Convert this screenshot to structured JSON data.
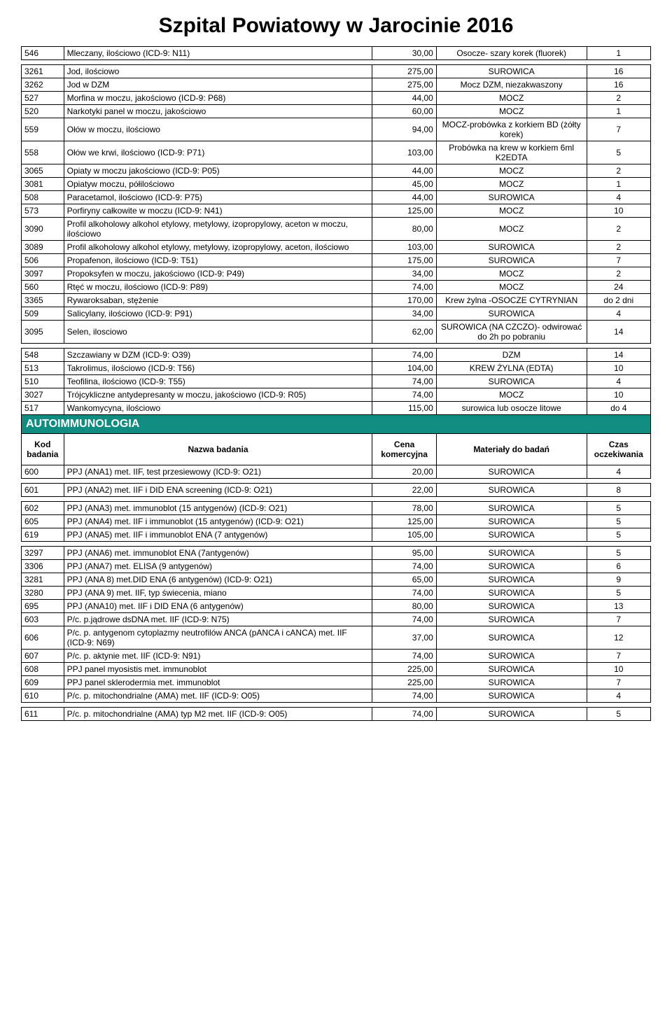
{
  "title": "Szpital Powiatowy w Jarocinie 2016",
  "section": "AUTOIMMUNOLOGIA",
  "headers": {
    "kod": "Kod badania",
    "nazwa": "Nazwa badania",
    "cena": "Cena komercyjna",
    "mat": "Materiały do badań",
    "czas": "Czas oczekiwania"
  },
  "colors": {
    "section_bg": "#118c80",
    "section_fg": "#ffffff",
    "border": "#000000",
    "text": "#000000",
    "bg": "#ffffff"
  },
  "rows1": [
    {
      "k": "546",
      "n": "Mleczany, ilościowo (ICD-9: N11)",
      "c": "30,00",
      "m": "Osocze- szary korek (fluorek)",
      "t": "1"
    },
    {
      "gap": true
    },
    {
      "k": "3261",
      "n": "Jod, ilościowo",
      "c": "275,00",
      "m": "SUROWICA",
      "t": "16"
    },
    {
      "k": "3262",
      "n": "Jod w DZM",
      "c": "275,00",
      "m": "Mocz DZM, niezakwaszony",
      "t": "16"
    },
    {
      "k": "527",
      "n": "Morfina w moczu, jakościowo (ICD-9: P68)",
      "c": "44,00",
      "m": "MOCZ",
      "t": "2"
    },
    {
      "k": "520",
      "n": "Narkotyki panel w moczu, jakościowo",
      "c": "60,00",
      "m": "MOCZ",
      "t": "1"
    },
    {
      "k": "559",
      "n": "Ołów w moczu, ilościowo",
      "c": "94,00",
      "m": "MOCZ-probówka z korkiem BD (żółty korek)",
      "t": "7"
    },
    {
      "k": "558",
      "n": "Ołów we krwi, ilościowo (ICD-9: P71)",
      "c": "103,00",
      "m": "Probówka na krew w korkiem 6ml K2EDTA",
      "t": "5"
    },
    {
      "k": "3065",
      "n": "Opiaty w moczu jakościowo (ICD-9: P05)",
      "c": "44,00",
      "m": "MOCZ",
      "t": "2"
    },
    {
      "k": "3081",
      "n": "Opiatyw moczu, półilościowo",
      "c": "45,00",
      "m": "MOCZ",
      "t": "1"
    },
    {
      "k": "508",
      "n": "Paracetamol, ilościowo (ICD-9: P75)",
      "c": "44,00",
      "m": "SUROWICA",
      "t": "4"
    },
    {
      "k": "573",
      "n": "Porfiryny całkowite w moczu (ICD-9: N41)",
      "c": "125,00",
      "m": "MOCZ",
      "t": "10"
    },
    {
      "k": "3090",
      "n": "Profil alkoholowy alkohol etylowy, metylowy, izopropylowy, aceton w moczu, ilościowo",
      "c": "80,00",
      "m": "MOCZ",
      "t": "2"
    },
    {
      "k": "3089",
      "n": "Profil alkoholowy alkohol etylowy, metylowy, izopropylowy, aceton, ilościowo",
      "c": "103,00",
      "m": "SUROWICA",
      "t": "2"
    },
    {
      "k": "506",
      "n": "Propafenon, ilościowo (ICD-9: T51)",
      "c": "175,00",
      "m": "SUROWICA",
      "t": "7"
    },
    {
      "k": "3097",
      "n": "Propoksyfen w moczu, jakościowo (ICD-9: P49)",
      "c": "34,00",
      "m": "MOCZ",
      "t": "2"
    },
    {
      "k": "560",
      "n": "Rtęć w moczu, ilościowo (ICD-9: P89)",
      "c": "74,00",
      "m": "MOCZ",
      "t": "24"
    },
    {
      "k": "3365",
      "n": "Rywaroksaban, stężenie",
      "c": "170,00",
      "m": "Krew  żylna -OSOCZE CYTRYNIAN",
      "t": "do 2 dni"
    },
    {
      "k": "509",
      "n": "Salicylany, ilościowo (ICD-9: P91)",
      "c": "34,00",
      "m": "SUROWICA",
      "t": "4"
    },
    {
      "k": "3095",
      "n": "Selen, ilosciowo",
      "c": "62,00",
      "m": "SUROWICA (NA CZCZO)- odwirować do 2h po pobraniu",
      "t": "14"
    },
    {
      "gap": true
    },
    {
      "k": "548",
      "n": "Szczawiany w DZM (ICD-9: O39)",
      "c": "74,00",
      "m": "DZM",
      "t": "14"
    },
    {
      "k": "513",
      "n": "Takrolimus, ilościowo (ICD-9: T56)",
      "c": "104,00",
      "m": "KREW ŻYLNA  (EDTA)",
      "t": "10"
    },
    {
      "k": "510",
      "n": "Teofilina, ilościowo (ICD-9: T55)",
      "c": "74,00",
      "m": "SUROWICA",
      "t": "4"
    },
    {
      "k": "3027",
      "n": "Trójcykliczne antydepresanty w moczu, jakościowo (ICD-9: R05)",
      "c": "74,00",
      "m": "MOCZ",
      "t": "10"
    },
    {
      "k": "517",
      "n": "Wankomycyna, ilościowo",
      "c": "115,00",
      "m": "surowica lub osocze litowe",
      "t": "do 4"
    }
  ],
  "rows2": [
    {
      "k": "600",
      "n": "PPJ (ANA1) met. IIF, test przesiewowy (ICD-9: O21)",
      "c": "20,00",
      "m": "SUROWICA",
      "t": "4"
    },
    {
      "gap": true
    },
    {
      "k": "601",
      "n": "PPJ (ANA2) met. IIF i DID ENA screening (ICD-9: O21)",
      "c": "22,00",
      "m": "SUROWICA",
      "t": "8"
    },
    {
      "gap": true
    },
    {
      "k": "602",
      "n": "PPJ (ANA3) met. immunoblot (15 antygenów) (ICD-9: O21)",
      "c": "78,00",
      "m": "SUROWICA",
      "t": "5"
    },
    {
      "k": "605",
      "n": "PPJ (ANA4) met. IIF i immunoblot (15 antygenów)  (ICD-9: O21)",
      "c": "125,00",
      "m": "SUROWICA",
      "t": "5"
    },
    {
      "k": "619",
      "n": "PPJ (ANA5) met. IIF i immunoblot ENA (7 antygenów)",
      "c": "105,00",
      "m": "SUROWICA",
      "t": "5"
    },
    {
      "gap": true
    },
    {
      "k": "3297",
      "n": "PPJ (ANA6) met. immunoblot ENA (7antygenów)",
      "c": "95,00",
      "m": "SUROWICA",
      "t": "5"
    },
    {
      "k": "3306",
      "n": "PPJ (ANA7) met. ELISA (9 antygenów)",
      "c": "74,00",
      "m": "SUROWICA",
      "t": "6"
    },
    {
      "k": "3281",
      "n": "PPJ (ANA 8) met.DID ENA (6 antygenów)  (ICD-9: O21)",
      "c": "65,00",
      "m": "SUROWICA",
      "t": "9"
    },
    {
      "k": "3280",
      "n": "PPJ (ANA 9) met. IIF, typ świecenia, miano",
      "c": "74,00",
      "m": "SUROWICA",
      "t": "5"
    },
    {
      "k": "695",
      "n": "PPJ (ANA10) met. IIF i DID ENA (6 antygenów)",
      "c": "80,00",
      "m": "SUROWICA",
      "t": "13"
    },
    {
      "k": "603",
      "n": "P/c. p.jądrowe  dsDNA met. IIF (ICD-9: N75)",
      "c": "74,00",
      "m": "SUROWICA",
      "t": "7"
    },
    {
      "k": "606",
      "n": "P/c. p. antygenom cytoplazmy neutrofilów ANCA (pANCA i cANCA) met. IIF (ICD-9: N69)",
      "c": "37,00",
      "m": "SUROWICA",
      "t": "12"
    },
    {
      "k": "607",
      "n": "P/c. p. aktynie met. IIF (ICD-9: N91)",
      "c": "74,00",
      "m": "SUROWICA",
      "t": "7"
    },
    {
      "k": "608",
      "n": "PPJ panel myosistis met. immunoblot",
      "c": "225,00",
      "m": "SUROWICA",
      "t": "10"
    },
    {
      "k": "609",
      "n": "PPJ panel sklerodermia met. immunoblot",
      "c": "225,00",
      "m": "SUROWICA",
      "t": "7"
    },
    {
      "k": "610",
      "n": "P/c. p. mitochondrialne (AMA) met. IIF (ICD-9: O05)",
      "c": "74,00",
      "m": "SUROWICA",
      "t": "4"
    },
    {
      "gap": true
    },
    {
      "k": "611",
      "n": "P/c. p. mitochondrialne (AMA) typ M2 met. IIF (ICD-9: O05)",
      "c": "74,00",
      "m": "SUROWICA",
      "t": "5"
    }
  ]
}
